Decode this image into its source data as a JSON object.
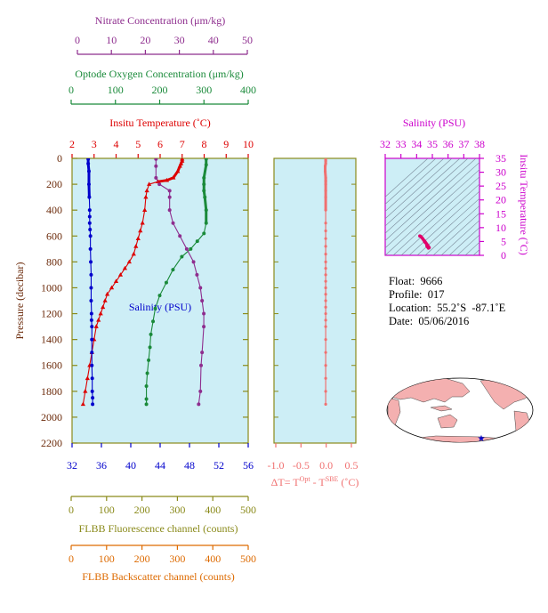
{
  "axes": {
    "nitrate": {
      "label": "Nitrate Concentration (μm/kg)",
      "ticks": [
        "0",
        "10",
        "20",
        "30",
        "40",
        "50"
      ],
      "range": [
        0,
        50
      ],
      "color": "#8e2d8e"
    },
    "oxygen": {
      "label": "Optode Oxygen Concentration (μm/kg)",
      "ticks": [
        "0",
        "100",
        "200",
        "300",
        "400"
      ],
      "range": [
        0,
        400
      ],
      "color": "#1a8a3a"
    },
    "temperature": {
      "label": "Insitu Temperature (˚C)",
      "ticks": [
        "2",
        "3",
        "4",
        "5",
        "6",
        "7",
        "8",
        "9",
        "10"
      ],
      "range": [
        2,
        10
      ],
      "color": "#dd0000"
    },
    "salinity": {
      "label": "Salinity (PSU)",
      "ticks": [
        "32",
        "36",
        "40",
        "44",
        "48",
        "52",
        "56"
      ],
      "range": [
        32,
        56
      ],
      "color": "#0000cc"
    },
    "pressure": {
      "label": "Pressure (decibar)",
      "ticks": [
        "0",
        "200",
        "400",
        "600",
        "800",
        "1000",
        "1200",
        "1400",
        "1600",
        "1800",
        "2000",
        "2200"
      ],
      "range": [
        0,
        2200
      ],
      "color": "#6b2a0a"
    },
    "fluorescence": {
      "label": "FLBB Fluorescence channel (counts)",
      "ticks": [
        "0",
        "100",
        "200",
        "300",
        "400",
        "500"
      ],
      "range": [
        0,
        500
      ],
      "color": "#8a8a1a"
    },
    "backscatter": {
      "label": "FLBB Backscatter channel (counts)",
      "ticks": [
        "0",
        "100",
        "200",
        "300",
        "400",
        "500"
      ],
      "range": [
        0,
        500
      ],
      "color": "#dd6a00"
    },
    "delta_t": {
      "label_main": "ΔT= T",
      "label_sup1": "Opt",
      "label_mid": " - T",
      "label_sup2": "SBE",
      "label_end": " (˚C)",
      "ticks": [
        "-1.0",
        "-0.5",
        "0.0",
        "0.5"
      ],
      "range": [
        -1.0,
        0.5
      ],
      "color": "#f07070"
    },
    "ts_salinity": {
      "label": "Salinity (PSU)",
      "ticks": [
        "32",
        "33",
        "34",
        "35",
        "36",
        "37",
        "38"
      ],
      "range": [
        32,
        38
      ],
      "color": "#cc00cc"
    },
    "ts_temperature": {
      "label": "Insitu Temperature (˚C)",
      "ticks": [
        "0",
        "5",
        "10",
        "15",
        "20",
        "25",
        "30",
        "35"
      ],
      "range": [
        0,
        35
      ],
      "color": "#cc00cc"
    }
  },
  "info": {
    "float_label": "Float:",
    "float_value": "9666",
    "profile_label": "Profile:",
    "profile_value": "017",
    "location_label": "Location:",
    "location_value": "55.2˚S  -87.1˚E",
    "date_label": "Date:",
    "date_value": "05/06/2016"
  },
  "footer": "",
  "colors": {
    "plot_bg": "#cdeef6",
    "frame": "#8a8a1a",
    "map_land": "#f4b0b0",
    "star": "#0000cc"
  },
  "chart_data": [
    {
      "type": "line",
      "title": "",
      "ylabel": "Pressure (decibar)",
      "ylim": [
        2200,
        0
      ],
      "series": [
        {
          "name": "Insitu Temperature",
          "axis": "temperature",
          "x": [
            7.0,
            7.0,
            6.95,
            6.9,
            6.8,
            6.6,
            6.3,
            5.9,
            5.5,
            5.4,
            5.35,
            5.3,
            5.2,
            5.1,
            5.0,
            4.9,
            4.8,
            4.6,
            4.4,
            4.2,
            4.0,
            3.8,
            3.6,
            3.5,
            3.4,
            3.3,
            3.2,
            3.1,
            3.0,
            2.9,
            2.8,
            2.7,
            2.6,
            2.5
          ],
          "y": [
            5,
            20,
            40,
            60,
            100,
            150,
            170,
            180,
            200,
            250,
            300,
            400,
            500,
            560,
            620,
            680,
            740,
            800,
            850,
            900,
            950,
            1000,
            1050,
            1100,
            1150,
            1200,
            1250,
            1300,
            1400,
            1500,
            1600,
            1700,
            1800,
            1900
          ]
        },
        {
          "name": "Salinity",
          "axis": "salinity",
          "x": [
            34.2,
            34.2,
            34.3,
            34.3,
            34.35,
            34.4,
            34.4,
            34.4,
            34.45,
            34.5,
            34.5,
            34.55,
            34.6,
            34.6,
            34.6,
            34.65,
            34.65,
            34.7,
            34.7,
            34.7,
            34.7,
            34.75,
            34.75,
            34.8,
            34.8
          ],
          "y": [
            5,
            40,
            100,
            200,
            300,
            400,
            450,
            500,
            550,
            600,
            700,
            800,
            900,
            1000,
            1100,
            1200,
            1250,
            1300,
            1400,
            1500,
            1600,
            1700,
            1800,
            1850,
            1900
          ]
        },
        {
          "name": "Optode Oxygen Concentration",
          "axis": "oxygen",
          "x": [
            305,
            305,
            300,
            300,
            300,
            302,
            305,
            305,
            300,
            285,
            270,
            250,
            230,
            215,
            200,
            190,
            185,
            180,
            178,
            175,
            172,
            170,
            170,
            170
          ],
          "y": [
            5,
            50,
            150,
            200,
            250,
            300,
            400,
            500,
            580,
            640,
            700,
            760,
            860,
            960,
            1060,
            1160,
            1260,
            1360,
            1460,
            1560,
            1660,
            1760,
            1860,
            1900
          ]
        },
        {
          "name": "Nitrate Concentration",
          "axis": "nitrate",
          "x": [
            23,
            23,
            23,
            24,
            27,
            27,
            27,
            28,
            30,
            32,
            34,
            35,
            36,
            36.5,
            37,
            37,
            36.5,
            36.2,
            36,
            35.5
          ],
          "y": [
            5,
            60,
            150,
            200,
            250,
            300,
            400,
            500,
            600,
            700,
            800,
            900,
            1000,
            1100,
            1200,
            1300,
            1500,
            1600,
            1800,
            1900
          ]
        }
      ]
    },
    {
      "type": "line",
      "xlabel": "ΔT= T Opt - T SBE (˚C)",
      "ylim": [
        2200,
        0
      ],
      "xlim": [
        -1.0,
        0.5
      ],
      "series": [
        {
          "name": "ΔT",
          "x": [
            -0.01,
            -0.01,
            -0.01,
            -0.02,
            -0.02,
            -0.01,
            -0.01,
            -0.01,
            -0.01,
            -0.01,
            -0.01,
            -0.01,
            -0.01,
            -0.01,
            -0.01,
            -0.01,
            -0.01,
            -0.01,
            -0.01,
            -0.01,
            -0.01,
            -0.01,
            -0.01,
            -0.01,
            -0.01,
            -0.01,
            -0.01,
            -0.01,
            -0.01,
            -0.01,
            -0.01,
            -0.01,
            -0.01,
            -0.01
          ],
          "y": [
            5,
            20,
            40,
            60,
            100,
            150,
            170,
            180,
            200,
            250,
            300,
            400,
            500,
            560,
            620,
            680,
            740,
            800,
            850,
            900,
            950,
            1000,
            1050,
            1100,
            1150,
            1200,
            1250,
            1300,
            1400,
            1500,
            1600,
            1700,
            1800,
            1900
          ]
        }
      ]
    },
    {
      "type": "scatter",
      "xlabel": "Salinity (PSU)",
      "ylabel": "Insitu Temperature (˚C)",
      "xlim": [
        32,
        38
      ],
      "ylim": [
        0,
        35
      ],
      "series": [
        {
          "name": "T-S",
          "x": [
            34.2,
            34.25,
            34.3,
            34.35,
            34.4,
            34.45,
            34.5,
            34.55,
            34.6,
            34.65,
            34.7,
            34.75,
            34.8,
            34.5,
            34.55,
            34.65,
            34.7,
            34.75
          ],
          "y": [
            7.0,
            6.9,
            6.6,
            6.3,
            5.9,
            5.5,
            5.2,
            4.8,
            4.4,
            4.0,
            3.6,
            3.2,
            2.8,
            5.0,
            4.6,
            3.4,
            3.0,
            2.6
          ]
        }
      ]
    }
  ]
}
